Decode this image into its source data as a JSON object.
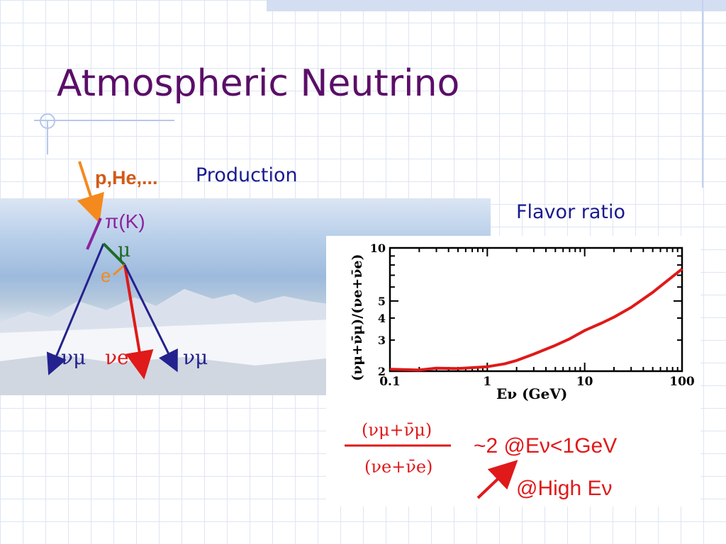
{
  "slide": {
    "title": "Atmospheric Neutrino",
    "production_label": "Production",
    "flavor_label": "Flavor ratio"
  },
  "diagram": {
    "primary": "p,He,...",
    "meson": "π(K)",
    "muon": "μ",
    "electron": "e",
    "nu_mu_left": "νμ",
    "nu_e": "νe",
    "nu_mu_right": "νμ"
  },
  "formula": {
    "numerator": "(νμ+ν̄μ)",
    "denominator": "(νe+ν̄e)",
    "line1": "~2 @Eν<1GeV",
    "line2": "@High Eν"
  },
  "chart_data": {
    "type": "line",
    "xlabel": "Eν (GeV)",
    "ylabel": "(νμ+ν̄μ)/(νe+ν̄e)",
    "xscale": "log",
    "yscale": "log",
    "xlim": [
      0.1,
      100
    ],
    "ylim": [
      2,
      10
    ],
    "x_ticklabels": [
      "0.1",
      "1",
      "10",
      "100"
    ],
    "y_ticklabels": [
      "2",
      "3",
      "4",
      "5",
      "10"
    ],
    "series_color": "#e01919",
    "x": [
      0.1,
      0.2,
      0.3,
      0.5,
      1,
      1.5,
      2,
      3,
      5,
      7,
      10,
      15,
      20,
      30,
      50,
      100
    ],
    "y": [
      2.05,
      2.03,
      2.08,
      2.07,
      2.12,
      2.2,
      2.3,
      2.5,
      2.8,
      3.05,
      3.4,
      3.75,
      4.05,
      4.6,
      5.6,
      7.6
    ]
  }
}
